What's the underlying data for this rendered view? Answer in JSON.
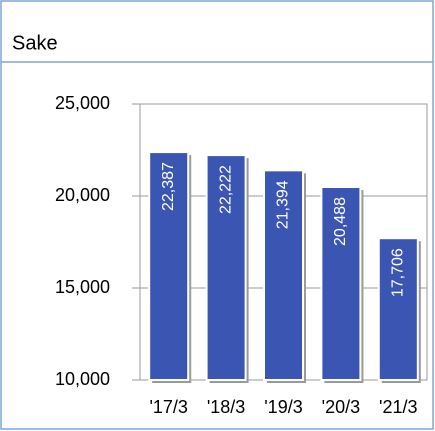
{
  "chart_data": {
    "type": "bar",
    "title": "Sake",
    "categories": [
      "'17/3",
      "'18/3",
      "'19/3",
      "'20/3",
      "'21/3"
    ],
    "values": [
      22387,
      22222,
      21394,
      20488,
      17706
    ],
    "value_labels": [
      "22,387",
      "22,222",
      "21,394",
      "20,488",
      "17,706"
    ],
    "color": "#3a56b2",
    "ylim": [
      10000,
      25000
    ],
    "yticks": [
      {
        "value": 10000,
        "label": "10,000"
      },
      {
        "value": 15000,
        "label": "15,000"
      },
      {
        "value": 20000,
        "label": "20,000"
      },
      {
        "value": 25000,
        "label": "25,000"
      }
    ],
    "grid": true
  }
}
